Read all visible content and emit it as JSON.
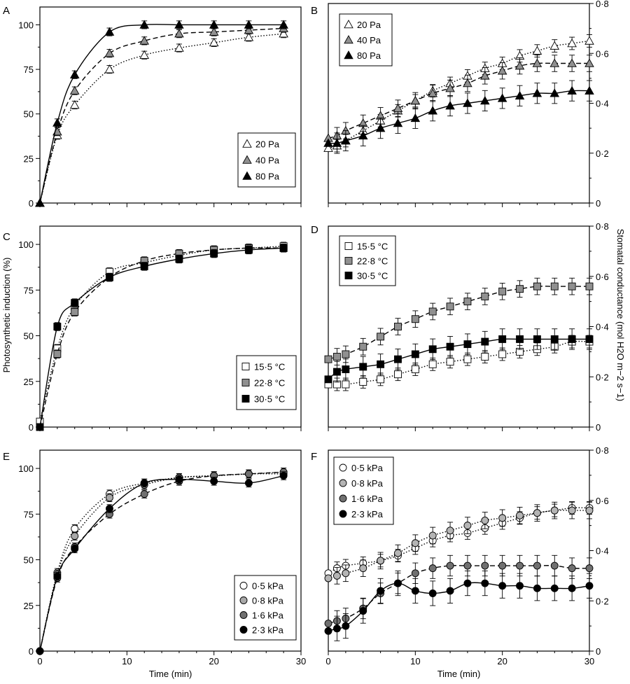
{
  "figure": {
    "shared_ylabel_left": "Photosynthetic induction (%)",
    "shared_ylabel_right": "Stomatal conductance (mol H2O m−2 s−1)",
    "shared_xlabel": "Time (min)"
  },
  "chart_data": [
    {
      "id": "A",
      "panel_label": "A",
      "type": "line",
      "xlim": [
        0,
        30
      ],
      "ylim": [
        0,
        110
      ],
      "xticks": [
        0,
        10,
        20,
        30
      ],
      "yticks": [
        0,
        25,
        50,
        75,
        100
      ],
      "ytick_labels": [
        "0",
        "25",
        "50",
        "75",
        "100"
      ],
      "xtick_labels_shown": false,
      "yaxis_side": "left",
      "legend_position": "lower-right",
      "grid": false,
      "series": [
        {
          "name": "20 Pa",
          "marker": "triangle",
          "fill": "#ffffff",
          "dash": "dotted",
          "x": [
            0,
            2,
            4,
            8,
            12,
            16,
            20,
            24,
            28
          ],
          "y": [
            0,
            38,
            55,
            75,
            83,
            87,
            90,
            93,
            95
          ]
        },
        {
          "name": "40 Pa",
          "marker": "triangle",
          "fill": "#909090",
          "dash": "dashed",
          "x": [
            0,
            2,
            4,
            8,
            12,
            16,
            20,
            24,
            28
          ],
          "y": [
            0,
            40,
            63,
            84,
            91,
            95,
            96,
            97,
            98
          ]
        },
        {
          "name": "80 Pa",
          "marker": "triangle",
          "fill": "#000000",
          "dash": "solid",
          "x": [
            0,
            2,
            4,
            8,
            12,
            16,
            20,
            24,
            28
          ],
          "y": [
            0,
            45,
            72,
            96,
            100,
            100,
            100,
            100,
            100
          ]
        }
      ]
    },
    {
      "id": "B",
      "panel_label": "B",
      "type": "line",
      "xlim": [
        0,
        30
      ],
      "ylim": [
        0,
        0.8
      ],
      "xticks": [
        0,
        10,
        20,
        30
      ],
      "yticks": [
        0,
        0.2,
        0.4,
        0.6,
        0.8
      ],
      "ytick_labels": [
        "0",
        "0·2",
        "0·4",
        "0·6",
        "0·8"
      ],
      "xtick_labels_shown": false,
      "yaxis_side": "right",
      "legend_position": "upper-left",
      "grid": false,
      "series": [
        {
          "name": "20 Pa",
          "marker": "triangle",
          "fill": "#ffffff",
          "dash": "dotted",
          "x": [
            0,
            1,
            2,
            4,
            6,
            8,
            10,
            12,
            14,
            16,
            18,
            20,
            22,
            24,
            26,
            28,
            30
          ],
          "y": [
            0.22,
            0.23,
            0.25,
            0.29,
            0.33,
            0.37,
            0.41,
            0.45,
            0.48,
            0.51,
            0.54,
            0.56,
            0.59,
            0.61,
            0.63,
            0.64,
            0.65
          ]
        },
        {
          "name": "40 Pa",
          "marker": "triangle",
          "fill": "#909090",
          "dash": "dashed",
          "x": [
            0,
            1,
            2,
            4,
            6,
            8,
            10,
            12,
            14,
            16,
            18,
            20,
            22,
            24,
            26,
            28,
            30
          ],
          "y": [
            0.26,
            0.27,
            0.29,
            0.32,
            0.35,
            0.38,
            0.41,
            0.44,
            0.46,
            0.48,
            0.51,
            0.53,
            0.55,
            0.56,
            0.56,
            0.56,
            0.56
          ]
        },
        {
          "name": "80 Pa",
          "marker": "triangle",
          "fill": "#000000",
          "dash": "solid",
          "x": [
            0,
            1,
            2,
            4,
            6,
            8,
            10,
            12,
            14,
            16,
            18,
            20,
            22,
            24,
            26,
            28,
            30
          ],
          "y": [
            0.24,
            0.24,
            0.25,
            0.27,
            0.3,
            0.32,
            0.34,
            0.37,
            0.39,
            0.4,
            0.41,
            0.42,
            0.43,
            0.44,
            0.44,
            0.45,
            0.45
          ]
        }
      ]
    },
    {
      "id": "C",
      "panel_label": "C",
      "type": "line",
      "xlim": [
        0,
        30
      ],
      "ylim": [
        0,
        110
      ],
      "xticks": [
        0,
        10,
        20,
        30
      ],
      "yticks": [
        0,
        25,
        50,
        75,
        100
      ],
      "ytick_labels": [
        "0",
        "25",
        "50",
        "75",
        "100"
      ],
      "xtick_labels_shown": false,
      "yaxis_side": "left",
      "legend_position": "lower-right",
      "grid": false,
      "series": [
        {
          "name": "15·5 °C",
          "marker": "square",
          "fill": "#ffffff",
          "dash": "dotted",
          "x": [
            0,
            2,
            4,
            8,
            12,
            16,
            20,
            24,
            28
          ],
          "y": [
            3,
            43,
            66,
            85,
            90,
            94,
            97,
            98,
            99
          ]
        },
        {
          "name": "22·8 °C",
          "marker": "square",
          "fill": "#909090",
          "dash": "dashed",
          "x": [
            0,
            2,
            4,
            8,
            12,
            16,
            20,
            24,
            28
          ],
          "y": [
            0,
            40,
            63,
            82,
            91,
            95,
            97,
            98,
            98
          ]
        },
        {
          "name": "30·5 °C",
          "marker": "square",
          "fill": "#000000",
          "dash": "solid",
          "x": [
            0,
            2,
            4,
            8,
            12,
            16,
            20,
            24,
            28
          ],
          "y": [
            0,
            55,
            68,
            82,
            88,
            92,
            95,
            97,
            98
          ]
        }
      ]
    },
    {
      "id": "D",
      "panel_label": "D",
      "type": "line",
      "xlim": [
        0,
        30
      ],
      "ylim": [
        0,
        0.8
      ],
      "xticks": [
        0,
        10,
        20,
        30
      ],
      "yticks": [
        0,
        0.2,
        0.4,
        0.6,
        0.8
      ],
      "ytick_labels": [
        "0",
        "0·2",
        "0·4",
        "0·6",
        "0·8"
      ],
      "xtick_labels_shown": false,
      "yaxis_side": "right",
      "legend_position": "upper-left",
      "grid": false,
      "series": [
        {
          "name": "15·5 °C",
          "marker": "square",
          "fill": "#ffffff",
          "dash": "dotted",
          "x": [
            0,
            1,
            2,
            4,
            6,
            8,
            10,
            12,
            14,
            16,
            18,
            20,
            22,
            24,
            26,
            28,
            30
          ],
          "y": [
            0.17,
            0.17,
            0.17,
            0.18,
            0.19,
            0.21,
            0.23,
            0.25,
            0.26,
            0.27,
            0.28,
            0.29,
            0.3,
            0.31,
            0.32,
            0.34,
            0.34
          ]
        },
        {
          "name": "22·8 °C",
          "marker": "square",
          "fill": "#909090",
          "dash": "dashed",
          "x": [
            0,
            1,
            2,
            4,
            6,
            8,
            10,
            12,
            14,
            16,
            18,
            20,
            22,
            24,
            26,
            28,
            30
          ],
          "y": [
            0.27,
            0.28,
            0.29,
            0.32,
            0.36,
            0.4,
            0.43,
            0.46,
            0.48,
            0.5,
            0.52,
            0.54,
            0.55,
            0.56,
            0.56,
            0.56,
            0.56
          ]
        },
        {
          "name": "30·5 °C",
          "marker": "square",
          "fill": "#000000",
          "dash": "solid",
          "x": [
            0,
            1,
            2,
            4,
            6,
            8,
            10,
            12,
            14,
            16,
            18,
            20,
            22,
            24,
            26,
            28,
            30
          ],
          "y": [
            0.19,
            0.22,
            0.23,
            0.24,
            0.25,
            0.27,
            0.29,
            0.31,
            0.32,
            0.33,
            0.34,
            0.35,
            0.35,
            0.35,
            0.35,
            0.35,
            0.35
          ]
        }
      ]
    },
    {
      "id": "E",
      "panel_label": "E",
      "type": "line",
      "xlim": [
        0,
        30
      ],
      "ylim": [
        0,
        110
      ],
      "xticks": [
        0,
        10,
        20,
        30
      ],
      "yticks": [
        0,
        25,
        50,
        75,
        100
      ],
      "ytick_labels": [
        "0",
        "25",
        "50",
        "75",
        "100"
      ],
      "xtick_labels_shown": true,
      "yaxis_side": "left",
      "xlabel": "Time (min)",
      "legend_position": "lower-right",
      "grid": false,
      "series": [
        {
          "name": "0·5 kPa",
          "marker": "circle",
          "fill": "#ffffff",
          "dash": "dotted",
          "x": [
            0,
            2,
            4,
            8,
            12,
            16,
            20,
            24,
            28
          ],
          "y": [
            0,
            43,
            67,
            86,
            92,
            95,
            96,
            97,
            97
          ]
        },
        {
          "name": "0·8 kPa",
          "marker": "circle",
          "fill": "#a8a8a8",
          "dash": "dotted",
          "x": [
            0,
            2,
            4,
            8,
            12,
            16,
            20,
            24,
            28
          ],
          "y": [
            0,
            42,
            63,
            84,
            91,
            95,
            96,
            97,
            98
          ]
        },
        {
          "name": "1·6 kPa",
          "marker": "circle",
          "fill": "#707070",
          "dash": "dashed",
          "x": [
            0,
            2,
            4,
            8,
            12,
            16,
            20,
            24,
            28
          ],
          "y": [
            0,
            40,
            57,
            75,
            86,
            93,
            96,
            97,
            98
          ]
        },
        {
          "name": "2·3 kPa",
          "marker": "circle",
          "fill": "#000000",
          "dash": "solid",
          "x": [
            0,
            2,
            4,
            8,
            12,
            16,
            20,
            24,
            28
          ],
          "y": [
            0,
            41,
            56,
            78,
            92,
            94,
            93,
            92,
            96
          ]
        }
      ]
    },
    {
      "id": "F",
      "panel_label": "F",
      "type": "line",
      "xlim": [
        0,
        30
      ],
      "ylim": [
        0,
        0.8
      ],
      "xticks": [
        0,
        10,
        20,
        30
      ],
      "yticks": [
        0,
        0.2,
        0.4,
        0.6,
        0.8
      ],
      "ytick_labels": [
        "0",
        "0·2",
        "0·4",
        "0·6",
        "0·8"
      ],
      "xtick_labels_shown": true,
      "yaxis_side": "right",
      "xlabel": "Time (min)",
      "legend_position": "upper-left",
      "grid": false,
      "series": [
        {
          "name": "0·5 kPa",
          "marker": "circle",
          "fill": "#ffffff",
          "dash": "dotted",
          "x": [
            0,
            1,
            2,
            4,
            6,
            8,
            10,
            12,
            14,
            16,
            18,
            20,
            22,
            24,
            26,
            28,
            30
          ],
          "y": [
            0.31,
            0.33,
            0.34,
            0.35,
            0.36,
            0.38,
            0.41,
            0.44,
            0.46,
            0.47,
            0.49,
            0.51,
            0.53,
            0.55,
            0.56,
            0.57,
            0.57
          ]
        },
        {
          "name": "0·8 kPa",
          "marker": "circle",
          "fill": "#b4b4b4",
          "dash": "dotted",
          "x": [
            0,
            1,
            2,
            4,
            6,
            8,
            10,
            12,
            14,
            16,
            18,
            20,
            22,
            24,
            26,
            28,
            30
          ],
          "y": [
            0.29,
            0.3,
            0.31,
            0.33,
            0.36,
            0.39,
            0.43,
            0.46,
            0.48,
            0.5,
            0.52,
            0.53,
            0.54,
            0.55,
            0.56,
            0.56,
            0.56
          ]
        },
        {
          "name": "1·6 kPa",
          "marker": "circle",
          "fill": "#707070",
          "dash": "dashed",
          "x": [
            0,
            1,
            2,
            4,
            6,
            8,
            10,
            12,
            14,
            16,
            18,
            20,
            22,
            24,
            26,
            28,
            30
          ],
          "y": [
            0.11,
            0.12,
            0.13,
            0.17,
            0.23,
            0.27,
            0.31,
            0.33,
            0.34,
            0.34,
            0.34,
            0.34,
            0.34,
            0.34,
            0.34,
            0.33,
            0.33
          ]
        },
        {
          "name": "2·3 kPa",
          "marker": "circle",
          "fill": "#000000",
          "dash": "solid",
          "x": [
            0,
            1,
            2,
            4,
            6,
            8,
            10,
            12,
            14,
            16,
            18,
            20,
            22,
            24,
            26,
            28,
            30
          ],
          "y": [
            0.08,
            0.09,
            0.1,
            0.16,
            0.24,
            0.27,
            0.24,
            0.23,
            0.24,
            0.27,
            0.27,
            0.26,
            0.26,
            0.25,
            0.25,
            0.25,
            0.26
          ]
        }
      ]
    }
  ]
}
